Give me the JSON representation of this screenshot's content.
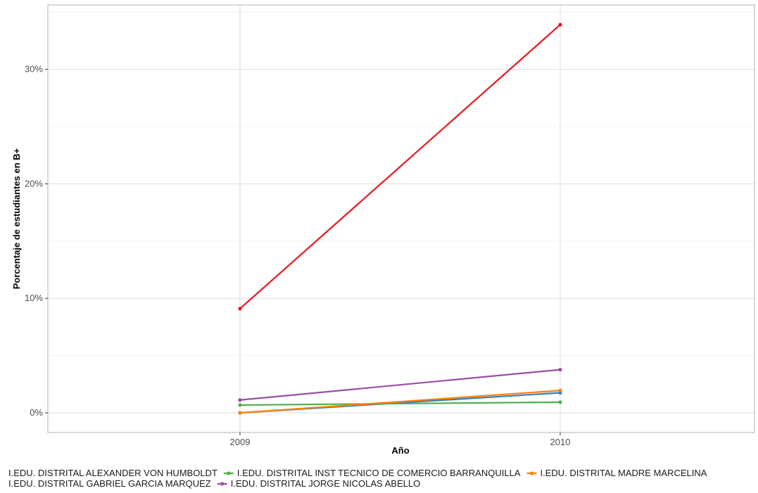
{
  "chart_data": {
    "type": "line",
    "xlabel": "Año",
    "ylabel": "Porcentaje de estudiantes en B+",
    "x": [
      "2009",
      "2010"
    ],
    "ylim": [
      -0.016,
      0.349
    ],
    "y_ticks": [
      0,
      0.1,
      0.2,
      0.3
    ],
    "y_tick_labels": [
      "0%",
      "10%",
      "20%",
      "30%"
    ],
    "grid": true,
    "legend_position": "bottom",
    "series": [
      {
        "name": "I.EDU. DISTRITAL ALEXANDER VON HUMBOLDT",
        "color": "#E41A1C",
        "values": [
          0.091,
          0.339
        ]
      },
      {
        "name": "I.EDU. DISTRITAL INST TECNICO DE COMERCIO BARRANQUILLA",
        "color": "#4DAF4A",
        "values": [
          0.0068,
          0.0093
        ]
      },
      {
        "name": "I.EDU. DISTRITAL MADRE MARCELINA",
        "color": "#FF7F00",
        "values": [
          0.0,
          0.0195
        ]
      },
      {
        "name": "I.EDU. DISTRITAL GABRIEL GARCIA MARQUEZ",
        "color": "#377EB8",
        "values": [
          0.0,
          0.0175
        ]
      },
      {
        "name": "I.EDU. DISTRITAL JORGE NICOLAS ABELLO",
        "color": "#984EA3",
        "values": [
          0.0112,
          0.0377
        ]
      }
    ]
  }
}
